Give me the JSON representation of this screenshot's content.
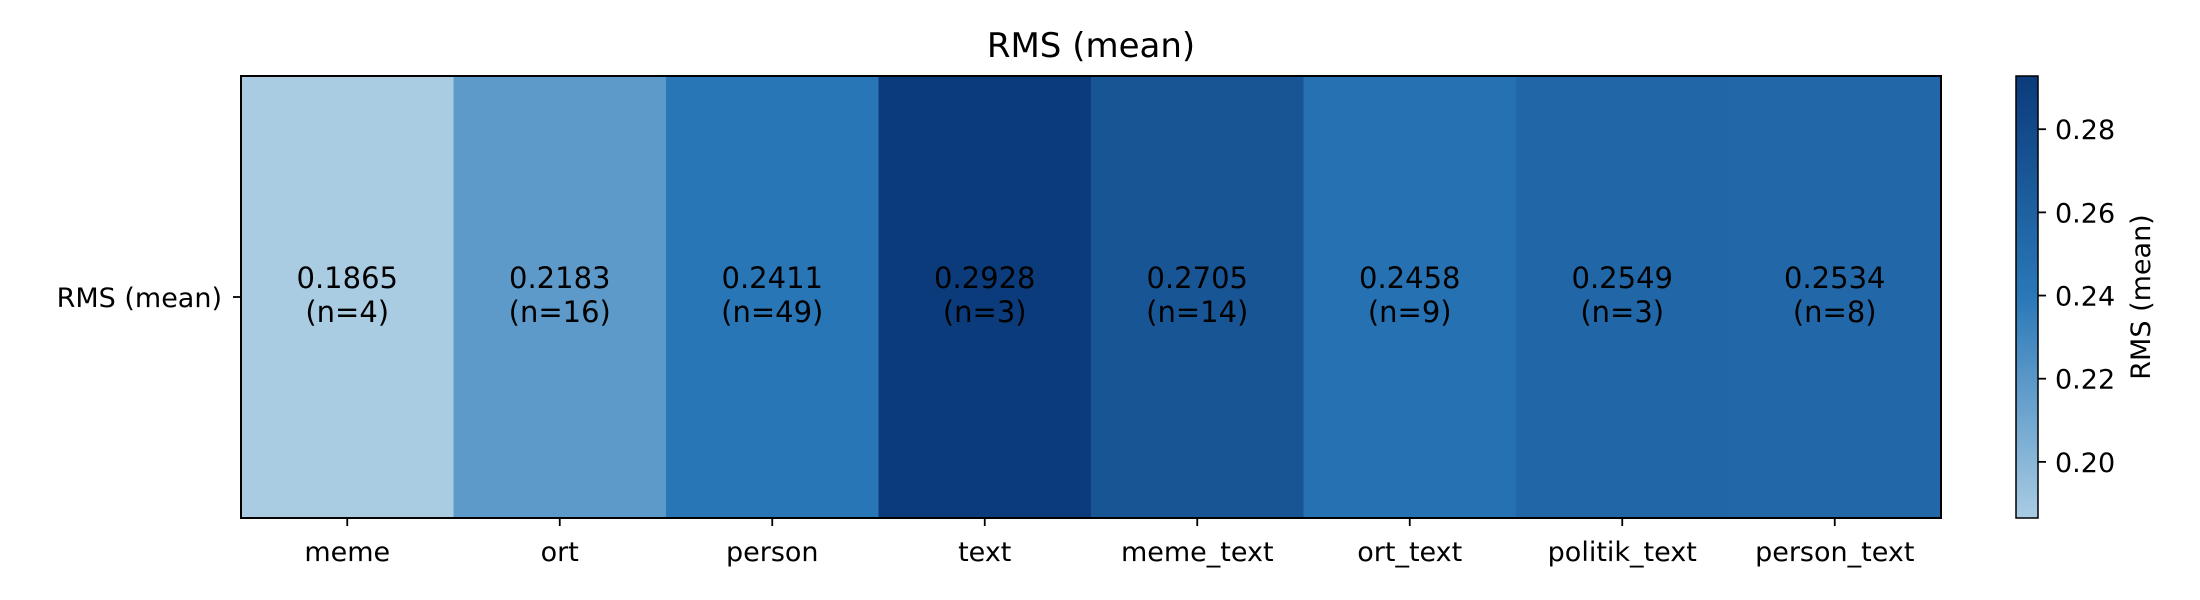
{
  "chart_data": {
    "type": "heatmap",
    "title": "RMS (mean)",
    "row_labels": [
      "RMS (mean)"
    ],
    "categories": [
      "meme",
      "ort",
      "person",
      "text",
      "meme_text",
      "ort_text",
      "politik_text",
      "person_text"
    ],
    "values": [
      0.1865,
      0.2183,
      0.2411,
      0.2928,
      0.2705,
      0.2458,
      0.2549,
      0.2534
    ],
    "cell_labels": [
      {
        "value": "0.1865",
        "count": "(n=4)"
      },
      {
        "value": "0.2183",
        "count": "(n=16)"
      },
      {
        "value": "0.2411",
        "count": "(n=49)"
      },
      {
        "value": "0.2928",
        "count": "(n=3)"
      },
      {
        "value": "0.2705",
        "count": "(n=14)"
      },
      {
        "value": "0.2458",
        "count": "(n=9)"
      },
      {
        "value": "0.2549",
        "count": "(n=3)"
      },
      {
        "value": "0.2534",
        "count": "(n=8)"
      }
    ],
    "colorbar": {
      "label": "RMS (mean)",
      "range": [
        0.1865,
        0.2928
      ],
      "ticks": [
        0.2,
        0.22,
        0.24,
        0.26,
        0.28
      ],
      "tick_labels": [
        "0.20",
        "0.22",
        "0.24",
        "0.26",
        "0.28"
      ],
      "colors": {
        "low": "#a9cce3",
        "mid": "#2a78b8",
        "high": "#0b3b7b"
      }
    },
    "grid": false
  }
}
